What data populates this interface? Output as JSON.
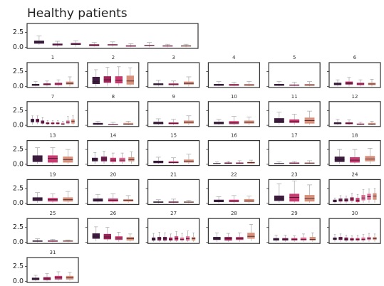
{
  "chart_data": {
    "type": "box",
    "title": "Healthy patients",
    "ylim": [
      -0.2,
      4
    ],
    "yticks": [
      {
        "value": 0,
        "label": "0.0"
      },
      {
        "value": 2.5,
        "label": "2.5"
      }
    ],
    "palette": [
      "#3d1c3f",
      "#701c50",
      "#a12257",
      "#c93a70",
      "#dc6a92",
      "#d9907a"
    ],
    "boxes": [
      [
        0.4,
        0.6,
        0.9,
        1.1,
        1.9
      ],
      [
        0.1,
        0.3,
        0.5,
        0.6,
        1.0
      ],
      [
        0.1,
        0.4,
        0.5,
        0.7,
        1.1
      ],
      [
        0.1,
        0.2,
        0.3,
        0.5,
        0.8
      ],
      [
        0.1,
        0.3,
        0.4,
        0.5,
        0.9
      ],
      [
        0,
        0.1,
        0.2,
        0.3,
        0.6
      ],
      [
        0,
        0.2,
        0.3,
        0.4,
        0.8
      ],
      [
        0,
        0.1,
        0.2,
        0.3,
        0.5
      ],
      [
        0,
        0.1,
        0.2,
        0.3,
        0.5
      ]
    ],
    "panels": [
      {
        "title": "1",
        "boxes": [
          [
            0,
            0.1,
            0.2,
            0.4,
            0.8
          ],
          [
            0,
            0.2,
            0.3,
            0.5,
            0.9
          ],
          [
            0,
            0.2,
            0.4,
            0.6,
            1.1
          ],
          [
            0,
            0.3,
            0.5,
            0.8,
            1.6
          ]
        ]
      },
      {
        "title": "2",
        "boxes": [
          [
            0,
            0.4,
            0.8,
            1.6,
            2.8
          ],
          [
            0.1,
            0.6,
            1.1,
            1.7,
            3.2
          ],
          [
            0.1,
            0.5,
            1.0,
            1.7,
            3.3
          ],
          [
            0.1,
            0.3,
            0.9,
            1.8,
            3.1
          ]
        ]
      },
      {
        "title": "3",
        "boxes": [
          [
            0,
            0.2,
            0.3,
            0.5,
            1.0
          ],
          [
            0,
            0.2,
            0.3,
            0.5,
            0.9
          ],
          [
            0,
            0.3,
            0.5,
            0.8,
            1.6
          ]
        ]
      },
      {
        "title": "4",
        "boxes": [
          [
            0,
            0.1,
            0.2,
            0.4,
            0.8
          ],
          [
            0,
            0.1,
            0.2,
            0.4,
            0.7
          ],
          [
            0,
            0.1,
            0.2,
            0.4,
            0.8
          ]
        ]
      },
      {
        "title": "5",
        "boxes": [
          [
            0,
            0.1,
            0.2,
            0.4,
            0.8
          ],
          [
            0,
            0.1,
            0.2,
            0.3,
            0.7
          ],
          [
            0,
            0.1,
            0.2,
            0.4,
            0.8
          ]
        ]
      },
      {
        "title": "6",
        "boxes": [
          [
            0,
            0.2,
            0.4,
            0.6,
            1.1
          ],
          [
            0,
            0.3,
            0.5,
            0.8,
            1.5
          ],
          [
            0,
            0.2,
            0.4,
            0.6,
            1.1
          ],
          [
            0,
            0.2,
            0.4,
            0.6,
            1.2
          ]
        ]
      },
      {
        "title": "7",
        "boxes": [
          [
            0.1,
            0.5,
            0.8,
            1.1,
            1.6
          ],
          [
            0.2,
            0.5,
            0.8,
            1.1,
            1.6
          ],
          [
            0.1,
            0.3,
            0.5,
            0.8,
            1.3
          ],
          [
            0,
            0.2,
            0.3,
            0.5,
            0.8
          ],
          [
            0,
            0.2,
            0.3,
            0.5,
            0.8
          ],
          [
            0,
            0.2,
            0.3,
            0.5,
            0.8
          ],
          [
            0,
            0.1,
            0.2,
            0.4,
            0.7
          ],
          [
            0.1,
            0.3,
            0.5,
            0.8,
            1.5
          ],
          [
            0.1,
            0.3,
            0.7,
            1.0,
            1.6
          ]
        ]
      },
      {
        "title": "8",
        "boxes": [
          [
            0,
            0.1,
            0.2,
            0.4,
            0.7
          ],
          [
            0,
            0.1,
            0.1,
            0.2,
            0.5
          ],
          [
            0,
            0.1,
            0.2,
            0.4,
            0.7
          ]
        ]
      },
      {
        "title": "9",
        "boxes": [
          [
            0,
            0.2,
            0.3,
            0.6,
            1.1
          ],
          [
            0,
            0.2,
            0.3,
            0.5,
            1.0
          ],
          [
            0,
            0.3,
            0.5,
            0.8,
            1.6
          ]
        ]
      },
      {
        "title": "10",
        "boxes": [
          [
            0,
            0.2,
            0.4,
            0.6,
            1.0
          ],
          [
            0,
            0.2,
            0.4,
            0.7,
            1.5
          ],
          [
            0,
            0.3,
            0.5,
            0.8,
            1.4
          ]
        ]
      },
      {
        "title": "11",
        "boxes": [
          [
            0.1,
            0.4,
            0.7,
            1.2,
            2.2
          ],
          [
            0.1,
            0.4,
            0.7,
            1.0,
            1.9
          ],
          [
            0.1,
            0.3,
            0.8,
            1.3,
            2.4
          ]
        ]
      },
      {
        "title": "12",
        "boxes": [
          [
            0,
            0.2,
            0.3,
            0.5,
            1.0
          ],
          [
            0,
            0.2,
            0.3,
            0.5,
            0.9
          ],
          [
            0,
            0.1,
            0.2,
            0.3,
            0.5
          ],
          [
            0,
            0.1,
            0.2,
            0.4,
            0.7
          ]
        ]
      },
      {
        "title": "13",
        "boxes": [
          [
            0.1,
            0.4,
            0.9,
            1.5,
            2.8
          ],
          [
            0.1,
            0.3,
            1.0,
            1.5,
            2.8
          ],
          [
            0.1,
            0.3,
            0.8,
            1.3,
            2.5
          ]
        ]
      },
      {
        "title": "14",
        "boxes": [
          [
            0.1,
            0.5,
            0.8,
            1.1,
            2.0
          ],
          [
            0.1,
            0.5,
            0.9,
            1.3,
            2.2
          ],
          [
            0.1,
            0.4,
            0.7,
            1.1,
            1.9
          ],
          [
            0.1,
            0.4,
            0.7,
            1.1,
            1.9
          ],
          [
            0.1,
            0.5,
            0.8,
            1.2,
            2.1
          ]
        ]
      },
      {
        "title": "15",
        "boxes": [
          [
            0,
            0.2,
            0.4,
            0.6,
            1.2
          ],
          [
            0,
            0.2,
            0.3,
            0.5,
            1.1
          ],
          [
            0,
            0.3,
            0.5,
            0.8,
            1.7
          ]
        ]
      },
      {
        "title": "16",
        "boxes": [
          [
            0,
            0.1,
            0.1,
            0.2,
            0.4
          ],
          [
            0,
            0.1,
            0.2,
            0.3,
            0.5
          ],
          [
            0,
            0.1,
            0.2,
            0.3,
            0.6
          ],
          [
            0,
            0.1,
            0.3,
            0.4,
            0.7
          ]
        ]
      },
      {
        "title": "17",
        "boxes": [
          [
            0,
            0.1,
            0.1,
            0.2,
            0.4
          ],
          [
            0,
            0.1,
            0.2,
            0.3,
            0.5
          ],
          [
            0,
            0.1,
            0.2,
            0.3,
            0.6
          ]
        ]
      },
      {
        "title": "18",
        "boxes": [
          [
            0.1,
            0.4,
            0.8,
            1.3,
            2.5
          ],
          [
            0.1,
            0.3,
            0.7,
            1.2,
            2.5
          ],
          [
            0.1,
            0.5,
            0.9,
            1.4,
            2.7
          ]
        ]
      },
      {
        "title": "19",
        "boxes": [
          [
            0.1,
            0.4,
            0.7,
            1.0,
            1.8
          ],
          [
            0.1,
            0.3,
            0.6,
            0.9,
            1.6
          ],
          [
            0.1,
            0.3,
            0.6,
            1.0,
            2.0
          ]
        ]
      },
      {
        "title": "20",
        "boxes": [
          [
            0.1,
            0.3,
            0.5,
            0.8,
            1.5
          ],
          [
            0.1,
            0.3,
            0.5,
            0.8,
            1.6
          ],
          [
            0.1,
            0.3,
            0.5,
            0.7,
            1.3
          ]
        ]
      },
      {
        "title": "21",
        "boxes": [
          [
            0,
            0.1,
            0.2,
            0.3,
            0.6
          ],
          [
            0,
            0.1,
            0.2,
            0.3,
            0.7
          ],
          [
            0,
            0.1,
            0.2,
            0.3,
            0.5
          ]
        ]
      },
      {
        "title": "22",
        "boxes": [
          [
            0,
            0.2,
            0.4,
            0.6,
            1.1
          ],
          [
            0,
            0.2,
            0.4,
            0.6,
            1.3
          ],
          [
            0,
            0.2,
            0.4,
            0.7,
            1.2
          ]
        ]
      },
      {
        "title": "23",
        "boxes": [
          [
            0.1,
            0.4,
            0.7,
            1.3,
            3.3
          ],
          [
            0.1,
            0.3,
            1.0,
            1.6,
            3.8
          ],
          [
            0.1,
            0.3,
            0.8,
            1.4,
            3.1
          ]
        ]
      },
      {
        "title": "24",
        "boxes": [
          [
            0,
            0.2,
            0.4,
            0.6,
            0.9
          ],
          [
            0,
            0.3,
            0.5,
            0.8,
            1.3
          ],
          [
            0,
            0.3,
            0.5,
            0.8,
            1.2
          ],
          [
            0.1,
            0.4,
            0.7,
            1.0,
            1.7
          ],
          [
            0,
            0.2,
            0.5,
            0.9,
            1.5
          ],
          [
            0.1,
            0.5,
            0.9,
            1.4,
            2.3
          ],
          [
            0.1,
            0.6,
            1.1,
            1.6,
            2.4
          ],
          [
            0.1,
            0.6,
            1.2,
            1.7,
            2.5
          ]
        ]
      },
      {
        "title": "25",
        "boxes": [
          [
            0,
            0.1,
            0.2,
            0.3,
            0.6
          ],
          [
            0,
            0.1,
            0.2,
            0.3,
            0.5
          ],
          [
            0,
            0.1,
            0.2,
            0.3,
            0.4
          ]
        ]
      },
      {
        "title": "26",
        "boxes": [
          [
            0.2,
            0.6,
            1.0,
            1.5,
            2.6
          ],
          [
            0.2,
            0.5,
            0.9,
            1.4,
            2.5
          ],
          [
            0.1,
            0.4,
            0.7,
            1.0,
            1.7
          ],
          [
            0.1,
            0.3,
            0.6,
            0.9,
            1.4
          ]
        ]
      },
      {
        "title": "27",
        "boxes": [
          [
            0.1,
            0.3,
            0.5,
            0.8,
            1.5
          ],
          [
            0.1,
            0.3,
            0.6,
            0.9,
            1.7
          ],
          [
            0.1,
            0.3,
            0.6,
            0.9,
            1.6
          ],
          [
            0.1,
            0.3,
            0.5,
            0.8,
            1.4
          ],
          [
            0.1,
            0.3,
            0.6,
            1.0,
            1.8
          ],
          [
            0.1,
            0.3,
            0.5,
            0.8,
            1.5
          ],
          [
            0.1,
            0.3,
            0.6,
            1.0,
            1.9
          ],
          [
            0.1,
            0.3,
            0.6,
            0.9,
            1.6
          ]
        ]
      },
      {
        "title": "28",
        "boxes": [
          [
            0.1,
            0.4,
            0.6,
            0.9,
            1.6
          ],
          [
            0.1,
            0.3,
            0.6,
            0.9,
            1.5
          ],
          [
            0.1,
            0.4,
            0.6,
            0.9,
            1.6
          ],
          [
            0.2,
            0.6,
            1.0,
            1.6,
            3.0
          ]
        ]
      },
      {
        "title": "29",
        "boxes": [
          [
            0.1,
            0.3,
            0.5,
            0.7,
            1.2
          ],
          [
            0.1,
            0.3,
            0.5,
            0.7,
            1.2
          ],
          [
            0.1,
            0.3,
            0.5,
            0.7,
            1.1
          ],
          [
            0.1,
            0.3,
            0.5,
            0.8,
            1.4
          ],
          [
            0.1,
            0.3,
            0.5,
            0.9,
            1.6
          ]
        ]
      },
      {
        "title": "30",
        "boxes": [
          [
            0.1,
            0.4,
            0.6,
            0.8,
            1.3
          ],
          [
            0.1,
            0.4,
            0.6,
            0.9,
            1.4
          ],
          [
            0.1,
            0.3,
            0.5,
            0.8,
            1.2
          ],
          [
            0.1,
            0.3,
            0.5,
            0.7,
            1.1
          ],
          [
            0.1,
            0.3,
            0.5,
            0.7,
            1.2
          ],
          [
            0.1,
            0.3,
            0.5,
            0.8,
            1.3
          ],
          [
            0.1,
            0.4,
            0.6,
            0.9,
            1.5
          ],
          [
            0.1,
            0.4,
            0.6,
            0.9,
            1.4
          ]
        ]
      },
      {
        "title": "31",
        "boxes": [
          [
            0,
            0.2,
            0.4,
            0.6,
            1.0
          ],
          [
            0,
            0.2,
            0.4,
            0.7,
            1.3
          ],
          [
            0.1,
            0.3,
            0.6,
            0.9,
            1.6
          ],
          [
            0.1,
            0.3,
            0.6,
            0.9,
            1.5
          ]
        ]
      }
    ]
  }
}
